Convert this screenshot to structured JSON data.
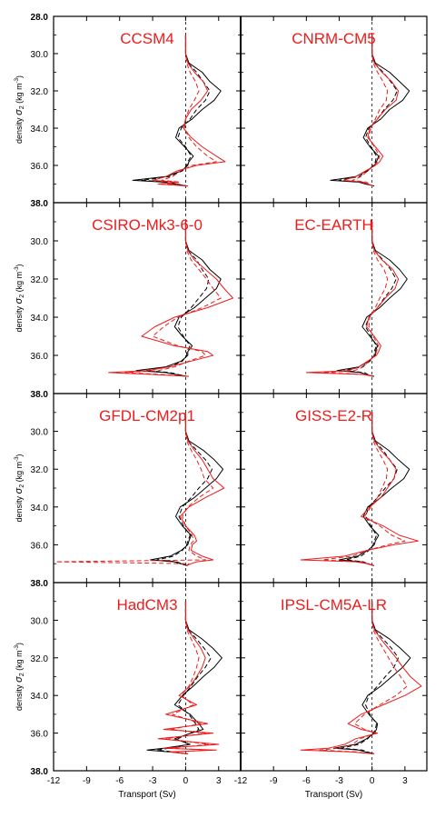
{
  "colors": {
    "black": "#000000",
    "red": "#ee1c1c",
    "title": "#ee1c1c"
  },
  "labels": {
    "ylabel": "density",
    "ylabel_sigma": "σ",
    "ylabel_sub": "2",
    "ylabel_units": "(kg m",
    "ylabel_exp": "-3",
    "ylabel_close": ")",
    "xlabel_left": "Transport (Sv)",
    "xlabel_right": "Transport (Sv)"
  },
  "ticks": {
    "y": [
      "28.0",
      "30.0",
      "32.0",
      "34.0",
      "36.0",
      "38.0"
    ],
    "y_values": [
      28,
      30,
      32,
      34,
      36,
      38
    ],
    "x": [
      "-12",
      "-9",
      "-6",
      "-3",
      "0",
      "3"
    ],
    "x_values": [
      -12,
      -9,
      -6,
      -3,
      0,
      3
    ]
  },
  "chart_data": {
    "type": "line",
    "xlim": [
      -12,
      5
    ],
    "ylim": [
      28,
      38
    ],
    "y_axis_inverted": true,
    "grid": false,
    "reference_line": {
      "x": 0,
      "style": "dashed"
    },
    "y_density": [
      29.0,
      30.0,
      30.5,
      31.0,
      31.5,
      32.0,
      32.5,
      33.0,
      33.5,
      34.0,
      34.5,
      35.0,
      35.5,
      35.8,
      36.0,
      36.3,
      36.6,
      36.8,
      36.9,
      37.0,
      37.1
    ],
    "panels": [
      {
        "title": "CCSM4",
        "series": [
          {
            "color": "black",
            "dash": "solid",
            "values": [
              0.0,
              0.0,
              0.3,
              1.5,
              2.2,
              3.2,
              2.6,
              1.5,
              0.6,
              -0.6,
              -0.9,
              -0.1,
              0.7,
              0.3,
              0.2,
              -0.4,
              -1.8,
              -4.8,
              -2.0,
              -1.0,
              0.2
            ]
          },
          {
            "color": "black",
            "dash": "dashed",
            "values": [
              0.0,
              0.0,
              0.2,
              1.0,
              1.6,
              2.2,
              1.8,
              1.0,
              0.4,
              -0.4,
              -0.7,
              0.0,
              0.5,
              0.2,
              0.1,
              -0.3,
              -1.5,
              -4.0,
              -1.5,
              -0.8,
              0.1
            ]
          },
          {
            "color": "red",
            "dash": "solid",
            "values": [
              0.0,
              0.0,
              0.2,
              0.8,
              1.6,
              2.0,
              1.4,
              0.5,
              0.0,
              -0.2,
              0.5,
              1.5,
              2.8,
              3.6,
              1.0,
              -0.8,
              -1.8,
              -3.0,
              -0.8,
              -2.5,
              0.2
            ]
          },
          {
            "color": "red",
            "dash": "dashed",
            "values": [
              0.0,
              0.0,
              0.1,
              0.4,
              0.9,
              1.2,
              0.8,
              0.3,
              0.0,
              -0.1,
              0.3,
              1.0,
              2.0,
              2.8,
              0.6,
              -0.5,
              -1.2,
              -2.2,
              -0.5,
              -1.8,
              0.1
            ]
          }
        ]
      },
      {
        "title": "CNRM-CM5",
        "series": [
          {
            "color": "black",
            "dash": "solid",
            "values": [
              0.0,
              0.0,
              0.3,
              1.6,
              2.5,
              3.4,
              2.8,
              1.6,
              0.8,
              -0.4,
              -0.8,
              -0.2,
              0.6,
              0.4,
              0.2,
              -0.5,
              -1.5,
              -3.8,
              -1.2,
              -0.6,
              0.2
            ]
          },
          {
            "color": "black",
            "dash": "dashed",
            "values": [
              0.0,
              0.0,
              0.2,
              1.0,
              1.7,
              2.3,
              1.9,
              1.1,
              0.5,
              -0.3,
              -0.6,
              -0.1,
              0.4,
              0.3,
              0.1,
              -0.4,
              -1.2,
              -3.0,
              -0.9,
              -0.4,
              0.1
            ]
          },
          {
            "color": "red",
            "dash": "solid",
            "values": [
              0.0,
              0.0,
              0.2,
              0.9,
              1.8,
              2.4,
              2.2,
              1.2,
              0.5,
              -0.2,
              -0.4,
              0.3,
              1.0,
              0.7,
              0.3,
              -0.6,
              -1.5,
              -2.6,
              -0.8,
              -0.4,
              0.1
            ]
          },
          {
            "color": "red",
            "dash": "dashed",
            "values": [
              0.0,
              0.0,
              0.1,
              0.5,
              1.0,
              1.4,
              1.3,
              0.7,
              0.3,
              -0.1,
              -0.3,
              0.2,
              0.7,
              0.5,
              0.2,
              -0.4,
              -1.0,
              -1.8,
              -0.5,
              -0.3,
              0.1
            ]
          }
        ]
      },
      {
        "title": "CSIRO-Mk3-6-0",
        "series": [
          {
            "color": "black",
            "dash": "solid",
            "values": [
              0.0,
              0.0,
              0.3,
              1.5,
              2.2,
              3.2,
              2.8,
              1.8,
              0.8,
              -0.6,
              -1.0,
              -0.3,
              0.6,
              0.2,
              0.2,
              -0.4,
              -1.8,
              -4.5,
              -1.8,
              -0.9,
              0.2
            ]
          },
          {
            "color": "black",
            "dash": "dashed",
            "values": [
              0.0,
              0.0,
              0.2,
              1.0,
              1.5,
              2.1,
              1.9,
              1.2,
              0.5,
              -0.4,
              -0.7,
              -0.2,
              0.4,
              0.1,
              0.1,
              -0.3,
              -1.4,
              -3.6,
              -1.4,
              -0.7,
              0.1
            ]
          },
          {
            "color": "red",
            "dash": "solid",
            "values": [
              0.0,
              0.0,
              0.2,
              0.8,
              1.8,
              2.8,
              3.5,
              4.3,
              2.0,
              -1.0,
              -2.8,
              -4.0,
              -1.0,
              2.0,
              2.5,
              0.5,
              -1.5,
              -3.5,
              -7.0,
              -3.0,
              0.3
            ]
          },
          {
            "color": "red",
            "dash": "dashed",
            "values": [
              0.0,
              0.0,
              0.1,
              0.5,
              1.2,
              1.9,
              2.5,
              3.2,
              1.5,
              -0.7,
              -2.0,
              -3.0,
              -0.7,
              1.5,
              1.8,
              0.3,
              -1.0,
              -2.5,
              -5.5,
              -2.2,
              0.2
            ]
          }
        ]
      },
      {
        "title": "EC-EARTH",
        "series": [
          {
            "color": "black",
            "dash": "solid",
            "values": [
              0.0,
              0.0,
              0.3,
              1.6,
              2.5,
              3.2,
              2.6,
              1.6,
              0.7,
              -0.5,
              -0.9,
              -0.2,
              0.5,
              0.3,
              0.3,
              -0.3,
              -1.2,
              -3.2,
              -1.0,
              -0.6,
              0.2
            ]
          },
          {
            "color": "black",
            "dash": "dashed",
            "values": [
              0.0,
              0.0,
              0.2,
              1.0,
              1.7,
              2.2,
              1.8,
              1.1,
              0.5,
              -0.3,
              -0.6,
              -0.1,
              0.4,
              0.2,
              0.2,
              -0.2,
              -0.9,
              -2.6,
              -0.7,
              -0.4,
              0.1
            ]
          },
          {
            "color": "red",
            "dash": "solid",
            "values": [
              0.0,
              0.0,
              0.2,
              0.9,
              1.9,
              2.4,
              2.1,
              1.2,
              0.5,
              -0.3,
              -0.5,
              0.2,
              0.8,
              0.6,
              0.4,
              -0.4,
              -1.2,
              -2.2,
              -6.0,
              -0.8,
              0.1
            ]
          },
          {
            "color": "red",
            "dash": "dashed",
            "values": [
              0.0,
              0.0,
              0.1,
              0.5,
              1.1,
              1.4,
              1.2,
              0.7,
              0.3,
              -0.2,
              -0.3,
              0.1,
              0.6,
              0.4,
              0.3,
              -0.3,
              -0.8,
              -1.6,
              -4.5,
              -0.6,
              0.1
            ]
          }
        ]
      },
      {
        "title": "GFDL-CM2p1",
        "series": [
          {
            "color": "black",
            "dash": "solid",
            "values": [
              0.0,
              0.0,
              0.3,
              1.6,
              2.6,
              3.4,
              2.8,
              1.8,
              0.8,
              -0.5,
              -0.9,
              -0.3,
              0.5,
              0.3,
              0.2,
              -0.4,
              -1.4,
              -3.2,
              -1.0,
              -0.5,
              0.2
            ]
          },
          {
            "color": "black",
            "dash": "dashed",
            "values": [
              0.0,
              0.0,
              0.2,
              1.0,
              1.8,
              2.4,
              2.0,
              1.2,
              0.5,
              -0.3,
              -0.6,
              -0.2,
              0.4,
              0.2,
              0.1,
              -0.3,
              -1.1,
              -2.6,
              -0.8,
              -0.4,
              0.1
            ]
          },
          {
            "color": "red",
            "dash": "solid",
            "values": [
              0.0,
              0.0,
              0.2,
              0.8,
              1.5,
              2.0,
              2.5,
              3.5,
              1.8,
              0.3,
              -0.5,
              0.0,
              0.8,
              1.0,
              0.6,
              0.5,
              1.5,
              2.5,
              1.0,
              0.5,
              0.1
            ]
          },
          {
            "color": "red",
            "dash": "dashed",
            "values": [
              0.0,
              0.0,
              0.1,
              0.5,
              1.0,
              1.4,
              1.7,
              2.5,
              1.2,
              0.2,
              -0.3,
              0.0,
              0.6,
              0.7,
              0.4,
              0.3,
              1.0,
              1.8,
              -11.8,
              0.3,
              0.1
            ]
          }
        ]
      },
      {
        "title": "GISS-E2-R",
        "series": [
          {
            "color": "black",
            "dash": "solid",
            "values": [
              0.0,
              0.0,
              0.3,
              1.5,
              2.4,
              3.4,
              2.9,
              1.8,
              0.8,
              -0.4,
              -0.8,
              -0.2,
              0.6,
              0.3,
              0.2,
              -0.4,
              -1.3,
              -3.0,
              -1.0,
              -0.5,
              0.2
            ]
          },
          {
            "color": "black",
            "dash": "dashed",
            "values": [
              0.0,
              0.0,
              0.2,
              1.0,
              1.6,
              2.3,
              2.0,
              1.2,
              0.5,
              -0.3,
              -0.6,
              -0.1,
              0.4,
              0.2,
              0.1,
              -0.3,
              -1.0,
              -2.4,
              -0.8,
              -0.4,
              0.1
            ]
          },
          {
            "color": "red",
            "dash": "solid",
            "values": [
              0.0,
              0.0,
              0.2,
              0.8,
              1.6,
              2.2,
              2.0,
              1.4,
              0.8,
              -0.2,
              -1.0,
              1.0,
              2.5,
              4.2,
              2.0,
              -0.5,
              -2.5,
              -6.5,
              -1.5,
              -0.4,
              0.1
            ]
          },
          {
            "color": "red",
            "dash": "dashed",
            "values": [
              0.0,
              0.0,
              0.1,
              0.5,
              1.0,
              1.4,
              1.3,
              0.9,
              0.5,
              -0.1,
              -0.7,
              0.7,
              1.8,
              3.0,
              1.4,
              -0.4,
              -1.8,
              -4.5,
              -1.1,
              -0.3,
              0.1
            ]
          }
        ]
      },
      {
        "title": "HadCM3",
        "series": [
          {
            "color": "black",
            "dash": "solid",
            "values": [
              0.0,
              0.0,
              0.3,
              1.5,
              2.5,
              3.3,
              2.6,
              1.6,
              0.7,
              -0.3,
              -1.0,
              0.4,
              1.2,
              1.6,
              0.5,
              -1.0,
              0.4,
              -2.0,
              -3.5,
              -1.5,
              0.2
            ]
          },
          {
            "color": "black",
            "dash": "dashed",
            "values": [
              0.0,
              0.0,
              0.2,
              1.0,
              1.7,
              2.3,
              1.8,
              1.1,
              0.5,
              -0.2,
              -0.7,
              0.3,
              0.9,
              1.2,
              0.4,
              -0.7,
              0.3,
              -1.5,
              -2.6,
              -1.1,
              0.1
            ]
          },
          {
            "color": "red",
            "dash": "solid",
            "values": [
              0.0,
              0.0,
              0.2,
              0.8,
              1.4,
              1.8,
              1.5,
              1.0,
              0.4,
              -0.6,
              1.0,
              -1.8,
              2.0,
              -2.0,
              2.5,
              -2.5,
              3.0,
              -2.0,
              2.8,
              -1.5,
              0.2
            ]
          },
          {
            "color": "red",
            "dash": "dashed",
            "values": [
              0.0,
              0.0,
              0.1,
              0.5,
              0.9,
              1.2,
              1.0,
              0.7,
              0.3,
              -0.4,
              0.7,
              -1.2,
              1.4,
              -1.4,
              1.8,
              -1.8,
              2.1,
              -1.4,
              2.0,
              -1.0,
              0.1
            ]
          }
        ]
      },
      {
        "title": "IPSL-CM5A-LR",
        "series": [
          {
            "color": "black",
            "dash": "solid",
            "values": [
              0.0,
              0.0,
              0.3,
              1.6,
              2.6,
              3.5,
              2.8,
              1.8,
              0.8,
              -0.4,
              -0.9,
              -0.3,
              0.5,
              0.4,
              0.2,
              -0.5,
              -1.5,
              -3.5,
              -1.2,
              -0.6,
              0.2
            ]
          },
          {
            "color": "black",
            "dash": "dashed",
            "values": [
              0.0,
              0.0,
              0.2,
              1.0,
              1.8,
              2.4,
              2.0,
              1.2,
              0.5,
              -0.3,
              -0.6,
              -0.2,
              0.4,
              0.3,
              0.1,
              -0.4,
              -1.2,
              -2.8,
              -0.9,
              -0.4,
              0.1
            ]
          },
          {
            "color": "red",
            "dash": "solid",
            "values": [
              0.0,
              0.0,
              0.2,
              0.8,
              1.5,
              2.2,
              2.8,
              3.5,
              4.5,
              3.0,
              1.0,
              -1.0,
              -2.2,
              -1.0,
              0.5,
              -1.5,
              -2.5,
              -4.0,
              -6.5,
              -2.0,
              0.2
            ]
          },
          {
            "color": "red",
            "dash": "dashed",
            "values": [
              0.0,
              0.0,
              0.1,
              0.5,
              1.0,
              1.5,
              2.0,
              2.6,
              3.2,
              2.2,
              0.7,
              -0.7,
              -1.6,
              -0.7,
              0.4,
              -1.1,
              -1.8,
              -3.0,
              -4.8,
              -1.4,
              0.1
            ]
          }
        ]
      }
    ]
  }
}
